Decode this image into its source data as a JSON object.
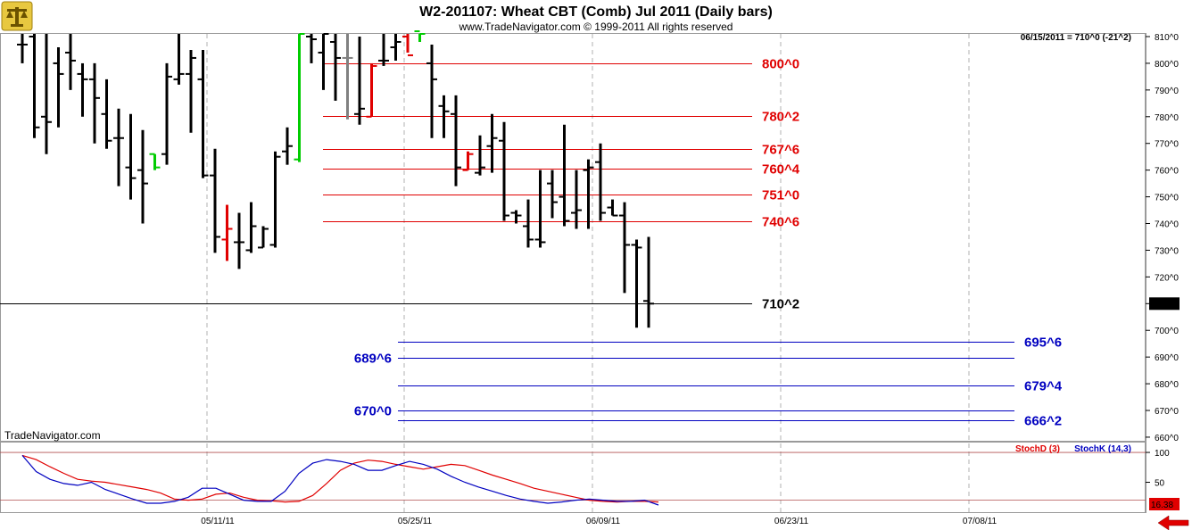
{
  "header": {
    "title": "W2-201107:  Wheat CBT (Comb) Jul 2011  (Daily bars)",
    "subtitle": "www.TradeNavigator.com © 1999-2011 All rights reserved",
    "readout": "06/15/2011 = 710^0 (-21^2)",
    "brand": "TradeNavigator.com"
  },
  "icons": [
    "balance-scale-logo-icon",
    "red-left-arrow-icon"
  ],
  "colors": {
    "bar": "#000000",
    "up_bar": "#00cc00",
    "down_bar": "#e00000",
    "neutral_bar": "#808080",
    "resistance": "#e00000",
    "support": "#0000c0",
    "stochd": "#e00000",
    "stochk": "#0000c0",
    "grid": "#b0b0b0"
  },
  "chart_data": [
    {
      "type": "ohlc",
      "y_tick_labels": [
        "660^0",
        "670^0",
        "680^0",
        "690^0",
        "700^0",
        "710^0",
        "720^0",
        "730^0",
        "740^0",
        "750^0",
        "760^0",
        "770^0",
        "780^0",
        "790^0",
        "800^0",
        "810^0"
      ],
      "ylim": [
        657,
        811
      ],
      "x_tick_labels": [
        "05/11/11",
        "05/25/11",
        "06/09/11",
        "06/23/11",
        "07/08/11"
      ],
      "last_price_label": "710^0",
      "price_bars": [
        {
          "o": 807,
          "h": 811,
          "l": 800,
          "c": 807
        },
        {
          "o": 810,
          "h": 811,
          "l": 772,
          "c": 776
        },
        {
          "o": 780,
          "h": 811,
          "l": 766,
          "c": 778
        },
        {
          "o": 800,
          "h": 806,
          "l": 776,
          "c": 796
        },
        {
          "o": 804,
          "h": 811,
          "l": 790,
          "c": 801
        },
        {
          "o": 796,
          "h": 800,
          "l": 780,
          "c": 794
        },
        {
          "o": 794,
          "h": 800,
          "l": 770,
          "c": 787
        },
        {
          "o": 781,
          "h": 794,
          "l": 768,
          "c": 771
        },
        {
          "o": 772,
          "h": 783,
          "l": 754,
          "c": 772
        },
        {
          "o": 761,
          "h": 781,
          "l": 749,
          "c": 757
        },
        {
          "o": 760,
          "h": 775,
          "l": 740,
          "c": 755
        },
        {
          "o": 766,
          "h": 766,
          "l": 760,
          "c": 761
        },
        {
          "o": 766,
          "h": 800,
          "l": 762,
          "c": 795
        },
        {
          "o": 794,
          "h": 811,
          "l": 792,
          "c": 796
        },
        {
          "o": 796,
          "h": 805,
          "l": 774,
          "c": 802
        },
        {
          "o": 794,
          "h": 805,
          "l": 757,
          "c": 758
        },
        {
          "o": 758,
          "h": 768,
          "l": 729,
          "c": 735
        },
        {
          "o": 734,
          "h": 747,
          "l": 726,
          "c": 738
        },
        {
          "o": 733,
          "h": 744,
          "l": 723,
          "c": 733
        },
        {
          "o": 730,
          "h": 748,
          "l": 729,
          "c": 739
        },
        {
          "o": 731,
          "h": 739,
          "l": 731,
          "c": 738
        },
        {
          "o": 732,
          "h": 767,
          "l": 731,
          "c": 765
        },
        {
          "o": 767,
          "h": 776,
          "l": 762,
          "c": 769
        },
        {
          "o": 764,
          "h": 811,
          "l": 763,
          "c": 811
        },
        {
          "o": 810,
          "h": 811,
          "l": 800,
          "c": 809
        },
        {
          "o": 804,
          "h": 811,
          "l": 790,
          "c": 811
        },
        {
          "o": 808,
          "h": 811,
          "l": 786,
          "c": 802
        },
        {
          "o": 802,
          "h": 811,
          "l": 779,
          "c": 802
        },
        {
          "o": 781,
          "h": 810,
          "l": 777,
          "c": 783
        },
        {
          "o": 780,
          "h": 800,
          "l": 780,
          "c": 799
        },
        {
          "o": 801,
          "h": 811,
          "l": 799,
          "c": 801
        },
        {
          "o": 806,
          "h": 811,
          "l": 801,
          "c": 808
        },
        {
          "o": 810,
          "h": 811,
          "l": 804,
          "c": 803
        },
        {
          "o": 812,
          "h": 812,
          "l": 808,
          "c": 811
        },
        {
          "o": 800,
          "h": 807,
          "l": 772,
          "c": 794
        },
        {
          "o": 784,
          "h": 788,
          "l": 772,
          "c": 782
        },
        {
          "o": 781,
          "h": 788,
          "l": 754,
          "c": 761
        },
        {
          "o": 760,
          "h": 767,
          "l": 760,
          "c": 766
        },
        {
          "o": 759,
          "h": 773,
          "l": 758,
          "c": 761
        },
        {
          "o": 769,
          "h": 781,
          "l": 759,
          "c": 772
        },
        {
          "o": 771,
          "h": 778,
          "l": 741,
          "c": 743
        },
        {
          "o": 744,
          "h": 745,
          "l": 740,
          "c": 743
        },
        {
          "o": 739,
          "h": 749,
          "l": 731,
          "c": 734
        },
        {
          "o": 734,
          "h": 760,
          "l": 731,
          "c": 733
        },
        {
          "o": 755,
          "h": 760,
          "l": 742,
          "c": 748
        },
        {
          "o": 750,
          "h": 777,
          "l": 739,
          "c": 741
        },
        {
          "o": 744,
          "h": 760,
          "l": 738,
          "c": 745
        },
        {
          "o": 760,
          "h": 764,
          "l": 738,
          "c": 761
        },
        {
          "o": 763,
          "h": 770,
          "l": 741,
          "c": 744
        },
        {
          "o": 746,
          "h": 749,
          "l": 743,
          "c": 743
        },
        {
          "o": 743,
          "h": 748,
          "l": 714,
          "c": 732
        },
        {
          "o": 732,
          "h": 734,
          "l": 701,
          "c": 731
        },
        {
          "o": 711,
          "h": 735,
          "l": 701,
          "c": 710
        }
      ],
      "levels": [
        {
          "label": "800^0",
          "value": 800,
          "color": "#e00000"
        },
        {
          "label": "780^2",
          "value": 780.25,
          "color": "#e00000"
        },
        {
          "label": "767^6",
          "value": 767.75,
          "color": "#e00000"
        },
        {
          "label": "760^4",
          "value": 760.5,
          "color": "#e00000"
        },
        {
          "label": "751^0",
          "value": 751,
          "color": "#e00000"
        },
        {
          "label": "740^6",
          "value": 740.75,
          "color": "#e00000"
        },
        {
          "label": "710^2",
          "value": 710.25,
          "color": "#000000"
        },
        {
          "label": "695^6",
          "value": 695.75,
          "color": "#0000c0"
        },
        {
          "label": "689^6",
          "value": 689.75,
          "color": "#0000c0"
        },
        {
          "label": "679^4",
          "value": 679.5,
          "color": "#0000c0"
        },
        {
          "label": "670^0",
          "value": 670,
          "color": "#0000c0"
        },
        {
          "label": "666^2",
          "value": 666.25,
          "color": "#0000c0"
        }
      ]
    },
    {
      "type": "line",
      "y_tick_labels": [
        "50",
        "100"
      ],
      "ylim": [
        0,
        115
      ],
      "last_value_label": "16.38",
      "series": [
        {
          "name": "StochD (3)",
          "color": "#e00000",
          "values": [
            95,
            88,
            76,
            65,
            55,
            52,
            50,
            46,
            42,
            38,
            32,
            22,
            20,
            22,
            30,
            32,
            25,
            20,
            19,
            17,
            18,
            28,
            48,
            70,
            82,
            87,
            85,
            80,
            76,
            72,
            76,
            80,
            78,
            70,
            62,
            55,
            48,
            40,
            35,
            30,
            25,
            20,
            18,
            17,
            18,
            18,
            17
          ]
        },
        {
          "name": "StochK (14,3)",
          "color": "#0000c0",
          "values": [
            95,
            68,
            55,
            48,
            45,
            50,
            38,
            30,
            22,
            15,
            15,
            18,
            25,
            40,
            40,
            30,
            20,
            18,
            18,
            35,
            65,
            82,
            88,
            85,
            80,
            70,
            70,
            78,
            85,
            80,
            72,
            60,
            50,
            42,
            35,
            28,
            22,
            18,
            15,
            17,
            20,
            22,
            20,
            18,
            18,
            20,
            12
          ]
        }
      ]
    }
  ]
}
